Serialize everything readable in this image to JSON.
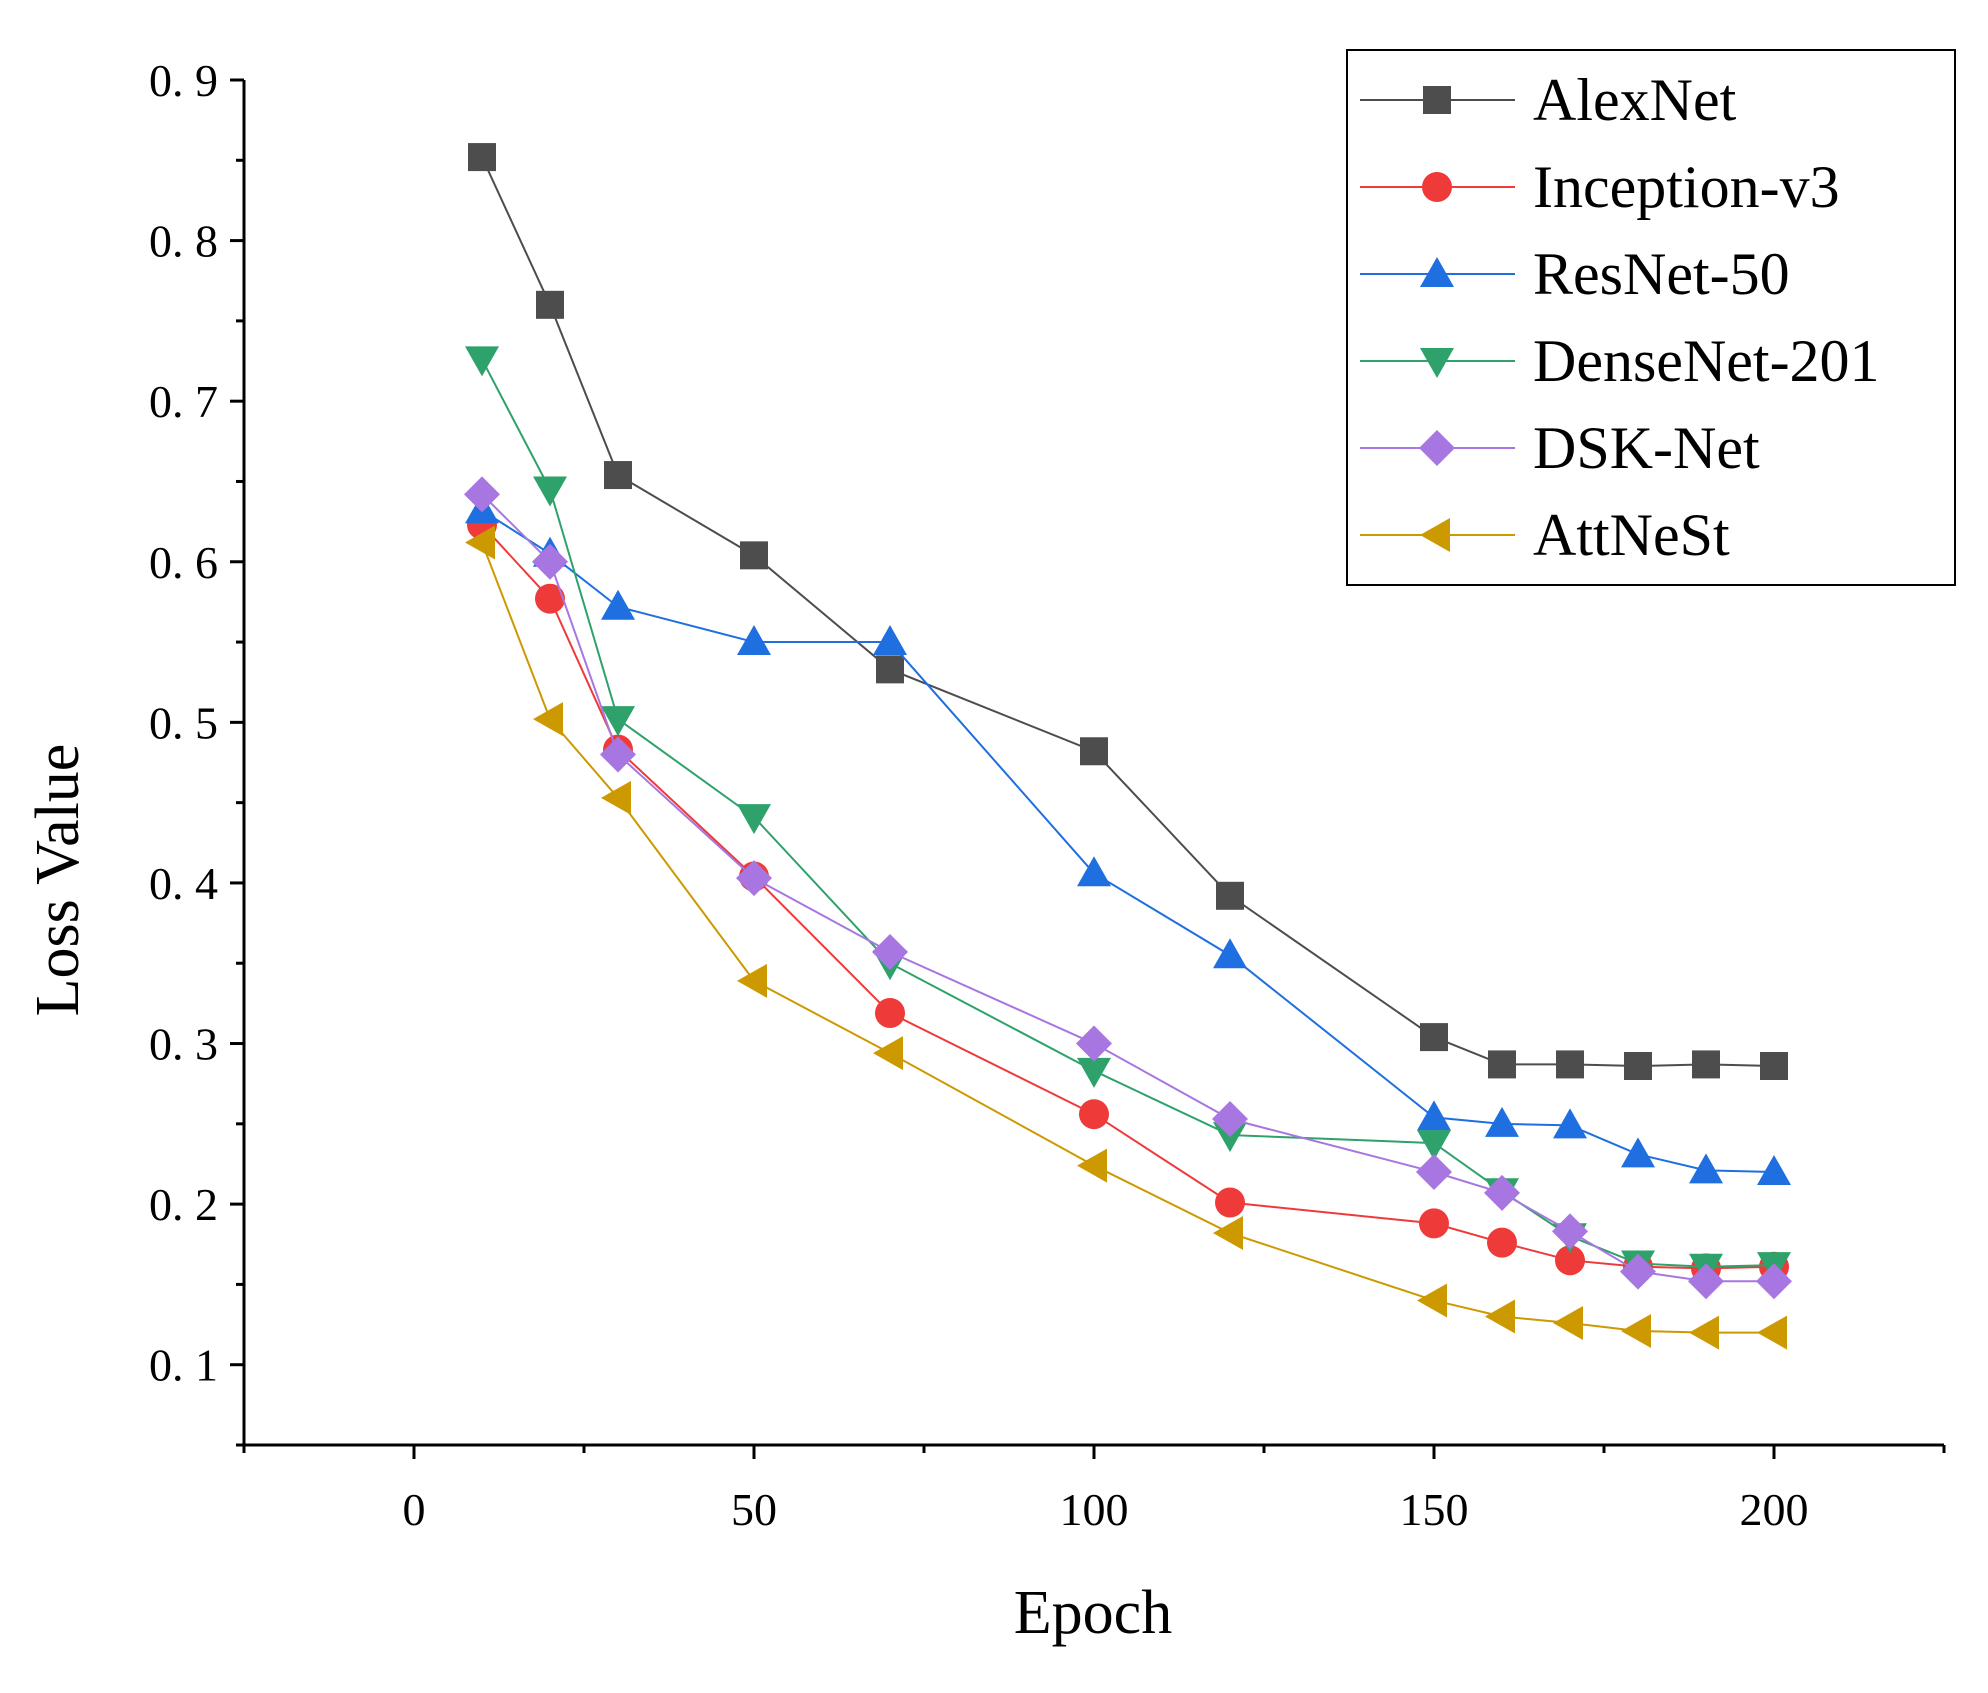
{
  "chart_data": {
    "type": "line",
    "title": "",
    "xlabel": "Epoch",
    "ylabel": "Loss Value",
    "xlim": [
      -25,
      225
    ],
    "ylim": [
      0.05,
      0.9
    ],
    "xticks": [
      0,
      50,
      100,
      150,
      200
    ],
    "xtick_labels": [
      "0",
      "50",
      "100",
      "150",
      "200"
    ],
    "yticks": [
      0.1,
      0.2,
      0.3,
      0.4,
      0.5,
      0.6,
      0.7,
      0.8,
      0.9
    ],
    "ytick_labels": [
      "0. 1",
      "0. 2",
      "0. 3",
      "0. 4",
      "0. 5",
      "0. 6",
      "0. 7",
      "0. 8",
      "0. 9"
    ],
    "grid": false,
    "legend_position": "top-right",
    "x": [
      10,
      20,
      30,
      50,
      70,
      100,
      120,
      150,
      160,
      170,
      180,
      190,
      200
    ],
    "series": [
      {
        "name": "AlexNet",
        "color": "#4d4d4d",
        "marker": "square",
        "values": [
          0.852,
          0.76,
          0.654,
          0.604,
          0.533,
          0.482,
          0.392,
          0.304,
          0.287,
          0.287,
          0.286,
          0.287,
          0.286
        ]
      },
      {
        "name": "Inception-v3",
        "color": "#ef3a3a",
        "marker": "circle",
        "values": [
          0.623,
          0.577,
          0.483,
          0.404,
          0.319,
          0.256,
          0.201,
          0.188,
          0.176,
          0.165,
          0.161,
          0.16,
          0.161
        ]
      },
      {
        "name": "ResNet-50",
        "color": "#1f6fe0",
        "marker": "triangle-up",
        "values": [
          0.632,
          0.605,
          0.572,
          0.55,
          0.55,
          0.406,
          0.355,
          0.254,
          0.25,
          0.249,
          0.231,
          0.221,
          0.22
        ]
      },
      {
        "name": "DenseNet-201",
        "color": "#2ea26a",
        "marker": "triangle-down",
        "values": [
          0.726,
          0.645,
          0.502,
          0.441,
          0.35,
          0.283,
          0.243,
          0.238,
          0.208,
          0.18,
          0.163,
          0.161,
          0.162
        ]
      },
      {
        "name": "DSK-Net",
        "color": "#a776e0",
        "marker": "diamond",
        "values": [
          0.642,
          0.6,
          0.48,
          0.403,
          0.357,
          0.3,
          0.253,
          0.22,
          0.207,
          0.183,
          0.158,
          0.152,
          0.152
        ]
      },
      {
        "name": "AttNeSt",
        "color": "#cc9900",
        "marker": "triangle-left",
        "values": [
          0.612,
          0.502,
          0.453,
          0.339,
          0.294,
          0.224,
          0.182,
          0.14,
          0.13,
          0.126,
          0.121,
          0.12,
          0.12
        ]
      }
    ]
  }
}
